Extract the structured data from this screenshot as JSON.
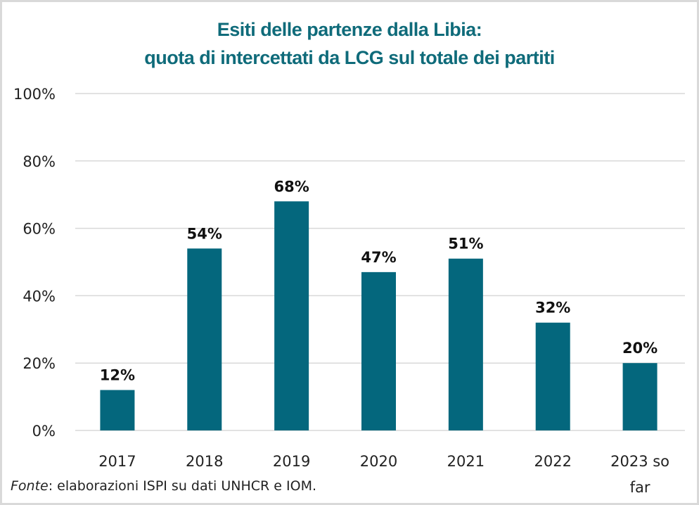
{
  "chart_data": {
    "type": "bar",
    "title": "Esiti delle partenze dalla Libia:",
    "subtitle": "quota di intercettati da LCG sul totale dei partiti",
    "categories": [
      "2017",
      "2018",
      "2019",
      "2020",
      "2021",
      "2022",
      "2023 so far"
    ],
    "category_lines": [
      [
        "2017"
      ],
      [
        "2018"
      ],
      [
        "2019"
      ],
      [
        "2020"
      ],
      [
        "2021"
      ],
      [
        "2022"
      ],
      [
        "2023 so",
        "far"
      ]
    ],
    "values": [
      12,
      54,
      68,
      47,
      51,
      32,
      20
    ],
    "data_labels": [
      "12%",
      "54%",
      "68%",
      "47%",
      "51%",
      "32%",
      "20%"
    ],
    "xlabel": "",
    "ylabel": "",
    "ylim": [
      0,
      100
    ],
    "yticks": [
      0,
      20,
      40,
      60,
      80,
      100
    ],
    "ytick_labels": [
      "0%",
      "20%",
      "40%",
      "60%",
      "80%",
      "100%"
    ],
    "grid": true,
    "legend": "none",
    "bar_color": "#04677d",
    "title_color": "#0f6b7a"
  },
  "source": {
    "prefix": "Fonte",
    "text": ": elaborazioni ISPI su dati UNHCR e IOM."
  }
}
